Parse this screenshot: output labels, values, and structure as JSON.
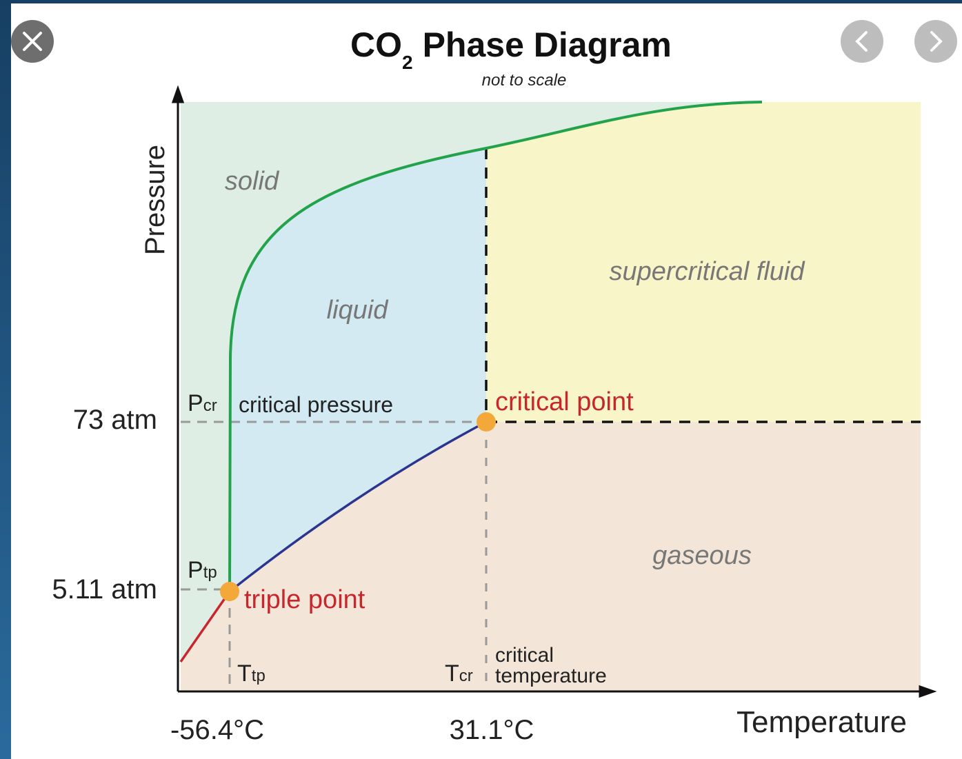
{
  "title": {
    "main": "CO",
    "sub": "2",
    "rest": "Phase Diagram",
    "subtitle": "not to scale"
  },
  "axes": {
    "y": "Pressure",
    "x": "Temperature",
    "y_ticks": [
      "73 atm",
      "5.11 atm"
    ],
    "x_ticks": [
      "-56.4°C",
      "31.1°C"
    ]
  },
  "regions": {
    "solid": "solid",
    "liquid": "liquid",
    "supercritical": "supercritical fluid",
    "gas": "gaseous"
  },
  "annotations": {
    "pcr": {
      "symbol": "P",
      "sub": "cr",
      "text": "critical pressure"
    },
    "ptp": {
      "symbol": "P",
      "sub": "tp"
    },
    "ttp": {
      "symbol": "T",
      "sub": "tp"
    },
    "tcr": {
      "symbol": "T",
      "sub": "cr",
      "line1": "critical",
      "line2": "temperature"
    },
    "critical_point": "critical point",
    "triple_point": "triple point"
  }
}
